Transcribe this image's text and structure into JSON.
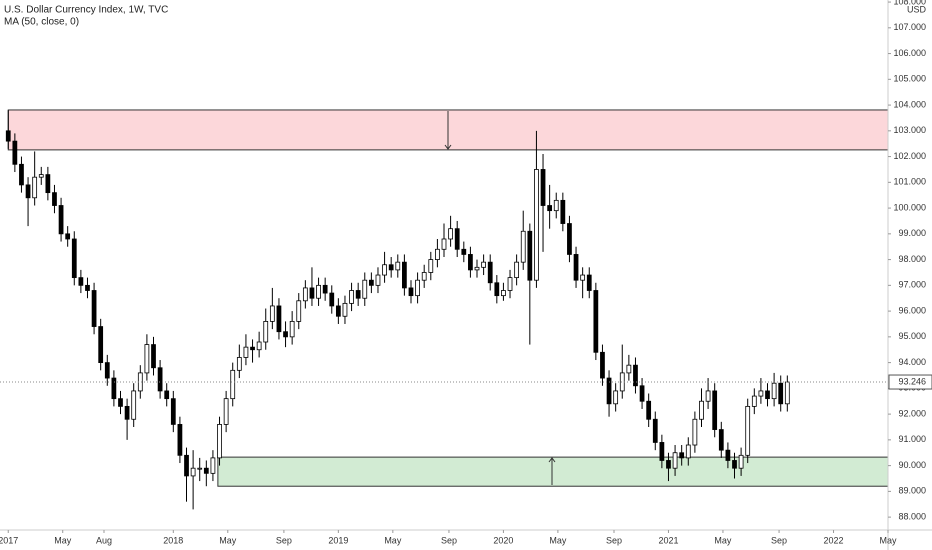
{
  "chart_data": {
    "type": "candlestick",
    "title": "U.S. Dollar Currency Index, 1W, TVC",
    "indicator": "MA (50, close, 0)",
    "currency": "USD",
    "x": [
      2017.0,
      2017.04,
      2017.08,
      2017.12,
      2017.16,
      2017.2,
      2017.24,
      2017.28,
      2017.32,
      2017.36,
      2017.4,
      2017.44,
      2017.48,
      2017.52,
      2017.56,
      2017.6,
      2017.64,
      2017.68,
      2017.72,
      2017.76,
      2017.8,
      2017.84,
      2017.88,
      2017.92,
      2017.96,
      2018.0,
      2018.04,
      2018.08,
      2018.12,
      2018.16,
      2018.2,
      2018.24,
      2018.28,
      2018.32,
      2018.36,
      2018.4,
      2018.44,
      2018.48,
      2018.52,
      2018.56,
      2018.6,
      2018.64,
      2018.68,
      2018.72,
      2018.76,
      2018.8,
      2018.84,
      2018.88,
      2018.92,
      2018.96,
      2019.0,
      2019.04,
      2019.08,
      2019.12,
      2019.16,
      2019.2,
      2019.24,
      2019.28,
      2019.32,
      2019.36,
      2019.4,
      2019.44,
      2019.48,
      2019.52,
      2019.56,
      2019.6,
      2019.64,
      2019.68,
      2019.72,
      2019.76,
      2019.8,
      2019.84,
      2019.88,
      2019.92,
      2019.96,
      2020.0,
      2020.04,
      2020.08,
      2020.12,
      2020.16,
      2020.2,
      2020.24,
      2020.28,
      2020.32,
      2020.36,
      2020.4,
      2020.44,
      2020.48,
      2020.52,
      2020.56,
      2020.6,
      2020.64,
      2020.68,
      2020.72,
      2020.76,
      2020.8,
      2020.84,
      2020.88,
      2020.92,
      2020.96,
      2021.0,
      2021.04,
      2021.08,
      2021.12,
      2021.16,
      2021.2,
      2021.24,
      2021.28,
      2021.32,
      2021.36,
      2021.4,
      2021.44,
      2021.48,
      2021.52,
      2021.56,
      2021.6,
      2021.64,
      2021.68,
      2021.72
    ],
    "open": [
      103.0,
      102.6,
      101.7,
      100.9,
      100.4,
      101.2,
      101.3,
      100.6,
      100.1,
      99.0,
      98.8,
      97.3,
      97.0,
      96.8,
      95.4,
      94.0,
      93.4,
      92.6,
      92.3,
      91.8,
      92.9,
      93.6,
      94.7,
      93.8,
      92.9,
      92.6,
      91.6,
      90.4,
      89.6,
      89.9,
      89.9,
      89.7,
      90.3,
      91.6,
      92.6,
      93.7,
      94.2,
      94.6,
      94.5,
      94.8,
      95.6,
      96.2,
      95.2,
      95.0,
      95.6,
      96.4,
      96.9,
      96.5,
      97.0,
      96.7,
      96.2,
      95.8,
      96.3,
      96.8,
      96.5,
      97.2,
      97.0,
      97.4,
      97.8,
      97.6,
      97.9,
      96.9,
      96.6,
      97.2,
      97.5,
      98.0,
      98.4,
      98.8,
      99.2,
      98.4,
      98.2,
      97.6,
      97.7,
      97.9,
      97.1,
      96.6,
      96.8,
      97.3,
      97.9,
      99.1,
      97.2,
      101.5,
      100.1,
      99.9,
      100.3,
      99.4,
      98.2,
      97.2,
      97.4,
      96.8,
      94.4,
      93.4,
      92.4,
      92.9,
      93.6,
      93.9,
      93.1,
      92.5,
      91.8,
      90.9,
      90.2,
      89.9,
      90.5,
      90.3,
      90.8,
      91.8,
      92.5,
      92.9,
      91.4,
      90.6,
      90.2,
      89.9,
      90.4,
      92.3,
      92.7,
      92.9,
      92.6,
      93.2,
      92.4
    ],
    "high": [
      103.8,
      102.9,
      102.0,
      101.2,
      102.2,
      101.6,
      101.6,
      100.9,
      100.4,
      99.3,
      99.1,
      97.6,
      97.3,
      97.1,
      95.7,
      94.3,
      93.7,
      92.9,
      92.6,
      93.2,
      93.9,
      95.1,
      95.0,
      94.1,
      93.2,
      92.9,
      91.9,
      90.7,
      90.6,
      90.3,
      90.2,
      90.6,
      91.9,
      92.9,
      94.0,
      94.7,
      95.1,
      94.9,
      95.2,
      96.1,
      96.9,
      96.5,
      95.6,
      96.0,
      96.7,
      97.2,
      97.7,
      97.3,
      97.3,
      97.0,
      96.5,
      96.6,
      97.1,
      97.1,
      97.5,
      97.5,
      97.7,
      98.3,
      98.1,
      98.2,
      98.2,
      97.2,
      97.5,
      97.8,
      98.3,
      98.8,
      99.4,
      99.7,
      99.5,
      98.7,
      98.5,
      98.0,
      98.2,
      98.2,
      97.4,
      97.1,
      97.6,
      98.2,
      99.9,
      99.4,
      103.0,
      102.1,
      100.9,
      100.6,
      100.6,
      99.7,
      98.5,
      97.7,
      97.7,
      97.1,
      94.7,
      93.7,
      93.2,
      94.7,
      94.3,
      94.2,
      93.4,
      92.8,
      92.1,
      91.2,
      90.5,
      90.8,
      90.8,
      91.1,
      92.1,
      93.0,
      93.4,
      93.2,
      91.7,
      90.9,
      90.5,
      90.7,
      92.6,
      93.0,
      93.4,
      93.2,
      93.6,
      93.5,
      93.5
    ],
    "low": [
      102.3,
      101.4,
      100.6,
      99.3,
      100.1,
      100.9,
      100.3,
      99.8,
      98.7,
      98.5,
      97.0,
      96.7,
      96.5,
      95.1,
      93.7,
      93.1,
      92.3,
      92.0,
      91.0,
      91.5,
      92.6,
      93.3,
      93.5,
      92.6,
      92.3,
      91.3,
      90.1,
      88.6,
      88.3,
      89.4,
      89.2,
      89.4,
      90.0,
      91.3,
      92.3,
      93.4,
      93.9,
      94.0,
      94.2,
      94.5,
      95.3,
      94.9,
      94.6,
      94.7,
      95.3,
      96.1,
      96.2,
      96.2,
      96.4,
      95.9,
      95.5,
      95.5,
      96.0,
      96.2,
      96.2,
      96.7,
      96.7,
      97.1,
      97.3,
      97.3,
      96.6,
      96.3,
      96.3,
      96.9,
      97.2,
      97.7,
      98.1,
      98.5,
      98.1,
      97.9,
      97.3,
      97.3,
      97.4,
      96.8,
      96.3,
      96.4,
      96.5,
      97.0,
      97.6,
      94.7,
      96.9,
      98.3,
      99.2,
      99.6,
      99.1,
      97.9,
      96.9,
      96.5,
      96.5,
      94.1,
      93.1,
      91.9,
      92.1,
      92.6,
      93.3,
      92.8,
      92.2,
      91.5,
      90.6,
      89.9,
      89.4,
      89.6,
      90.0,
      90.0,
      90.5,
      91.5,
      92.2,
      91.1,
      90.3,
      89.9,
      89.5,
      89.6,
      90.1,
      92.0,
      92.4,
      92.3,
      92.3,
      92.1,
      92.1
    ],
    "close": [
      102.6,
      101.7,
      100.9,
      100.4,
      101.2,
      101.3,
      100.6,
      100.1,
      99.0,
      98.8,
      97.3,
      97.0,
      96.8,
      95.4,
      94.0,
      93.4,
      92.6,
      92.3,
      91.8,
      92.9,
      93.6,
      94.7,
      93.8,
      92.9,
      92.6,
      91.6,
      90.4,
      89.6,
      89.9,
      89.9,
      89.7,
      90.3,
      91.6,
      92.6,
      93.7,
      94.2,
      94.6,
      94.5,
      94.8,
      95.6,
      96.2,
      95.2,
      95.0,
      95.6,
      96.4,
      96.9,
      96.5,
      97.0,
      96.7,
      96.2,
      95.8,
      96.3,
      96.8,
      96.5,
      97.2,
      97.0,
      97.4,
      97.8,
      97.6,
      97.9,
      96.9,
      96.6,
      97.2,
      97.5,
      98.0,
      98.4,
      98.8,
      99.2,
      98.4,
      98.2,
      97.6,
      97.7,
      97.9,
      97.1,
      96.6,
      96.8,
      97.3,
      97.9,
      99.1,
      97.2,
      101.5,
      100.1,
      99.9,
      100.3,
      99.4,
      98.2,
      97.2,
      97.4,
      96.8,
      94.4,
      93.4,
      92.4,
      92.9,
      93.6,
      93.9,
      93.1,
      92.5,
      91.8,
      90.9,
      90.2,
      89.9,
      90.5,
      90.3,
      90.8,
      91.8,
      92.5,
      92.9,
      91.4,
      90.6,
      90.2,
      89.9,
      90.4,
      92.3,
      92.7,
      92.9,
      92.6,
      93.2,
      92.4,
      93.246
    ],
    "up_color": "#ffffff",
    "down_color": "#000000",
    "outline_color": "#000000",
    "xlim": [
      2016.95,
      2022.33
    ],
    "ylim": [
      87.5,
      108.08
    ],
    "xticks": [
      2017,
      {
        "value": 2017.33,
        "label": "May"
      },
      {
        "value": 2017.58,
        "label": "Aug"
      },
      2018,
      {
        "value": 2018.33,
        "label": "May"
      },
      {
        "value": 2018.67,
        "label": "Sep"
      },
      2019,
      {
        "value": 2019.33,
        "label": "May"
      },
      {
        "value": 2019.67,
        "label": "Sep"
      },
      2020,
      {
        "value": 2020.33,
        "label": "May"
      },
      {
        "value": 2020.67,
        "label": "Sep"
      },
      2021,
      {
        "value": 2021.33,
        "label": "May"
      },
      {
        "value": 2021.67,
        "label": "Sep"
      },
      2022,
      {
        "value": 2022.33,
        "label": "May"
      }
    ],
    "yticks": [
      {
        "value": 88,
        "label": "88.000"
      },
      {
        "value": 89,
        "label": "89.000"
      },
      {
        "value": 90,
        "label": "90.000"
      },
      {
        "value": 91,
        "label": "91.000"
      },
      {
        "value": 92,
        "label": "92.000"
      },
      {
        "value": 93,
        "label": "93.000"
      },
      {
        "value": 94,
        "label": "94.000"
      },
      {
        "value": 95,
        "label": "95.000"
      },
      {
        "value": 96,
        "label": "96.000"
      },
      {
        "value": 97,
        "label": "97.000"
      },
      {
        "value": 98,
        "label": "98.000"
      },
      {
        "value": 99,
        "label": "99.000"
      },
      {
        "value": 100,
        "label": "100.000"
      },
      {
        "value": 101,
        "label": "101.000"
      },
      {
        "value": 102,
        "label": "102.000"
      },
      {
        "value": 103,
        "label": "103.000"
      },
      {
        "value": 104,
        "label": "104.000"
      },
      {
        "value": 105,
        "label": "105.000"
      },
      {
        "value": 106,
        "label": "106.000"
      },
      {
        "value": 107,
        "label": "107.000"
      },
      {
        "value": 108,
        "label": "108.000"
      }
    ],
    "zones": [
      {
        "top": 103.81,
        "bottom": 102.26,
        "start": 2017.0,
        "color": "rgba(242,54,69,0.2)"
      },
      {
        "top": 90.33,
        "bottom": 89.2,
        "start": 2018.27,
        "color": "rgba(76,175,80,0.25)"
      }
    ]
  }
}
